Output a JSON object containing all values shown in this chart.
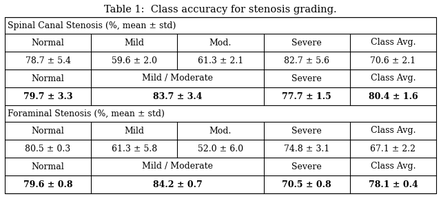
{
  "title": "Table 1:  Class accuracy for stenosis grading.",
  "title_fontsize": 10.5,
  "table_fontsize": 9.0,
  "sections": [
    {
      "header": "Spinal Canal Stenosis (%, mean ± std)",
      "col5_headers": [
        "Normal",
        "Mild",
        "Mod.",
        "Severe",
        "Class Avg."
      ],
      "col5_data": [
        "78.7 ± 5.4",
        "59.6 ± 2.0",
        "61.3 ± 2.1",
        "82.7 ± 5.6",
        "70.6 ± 2.1"
      ],
      "col4_headers": [
        "Normal",
        "Mild / Moderate",
        "Severe",
        "Class Avg."
      ],
      "col4_data": [
        "79.7 ± 3.3",
        "83.7 ± 3.4",
        "77.7 ± 1.5",
        "80.4 ± 1.6"
      ]
    },
    {
      "header": "Foraminal Stenosis (%, mean ± std)",
      "col5_headers": [
        "Normal",
        "Mild",
        "Mod.",
        "Severe",
        "Class Avg."
      ],
      "col5_data": [
        "80.5 ± 0.3",
        "61.3 ± 5.8",
        "52.0 ± 6.0",
        "74.8 ± 3.1",
        "67.1 ± 2.2"
      ],
      "col4_headers": [
        "Normal",
        "Mild / Moderate",
        "Severe",
        "Class Avg."
      ],
      "col4_data": [
        "79.6 ± 0.8",
        "84.2 ± 0.7",
        "70.5 ± 0.8",
        "78.1 ± 0.4"
      ]
    }
  ]
}
